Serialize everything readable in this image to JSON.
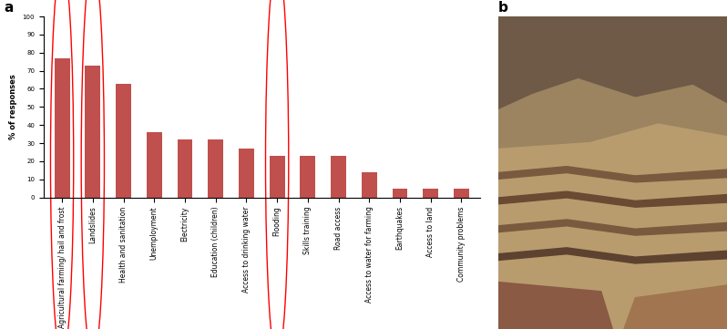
{
  "panel_labels": [
    "a",
    "b"
  ],
  "chart_data": {
    "type": "bar",
    "ylabel": "% of responses",
    "categories": [
      "Agricultural farming/ hail and frost",
      "Landslides",
      "Health and sanitation",
      "Unemployment",
      "Electricity",
      "Education (children)",
      "Access to drinking water",
      "Flooding",
      "Skills training",
      "Road access",
      "Access to water for farming",
      "Earthquakes",
      "Access to land",
      "Community problems"
    ],
    "values": [
      77,
      73,
      63,
      36,
      32,
      32,
      27,
      23,
      23,
      23,
      14,
      5,
      5,
      5
    ],
    "color": "#c0504d",
    "highlighted": [
      "Agricultural farming/ hail and frost",
      "Landslides",
      "Flooding"
    ],
    "ylim": [
      0,
      100
    ],
    "yticks": [
      0,
      10,
      20,
      30,
      40,
      50,
      60,
      70,
      80,
      90,
      100
    ],
    "grid": false
  }
}
